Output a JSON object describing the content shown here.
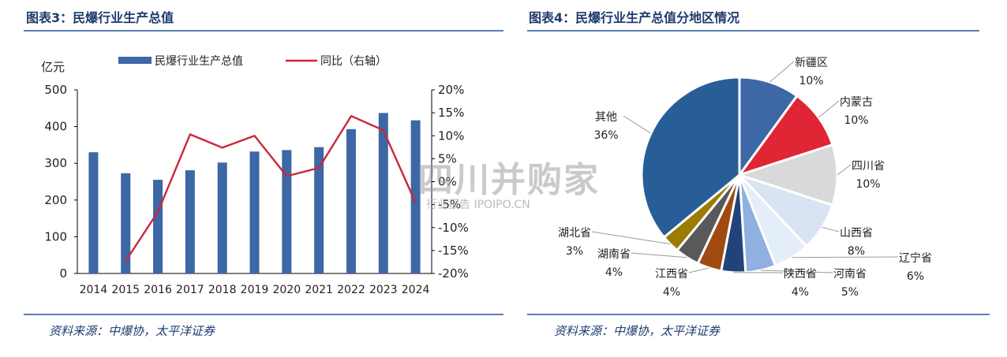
{
  "left_figure": {
    "title": "图表3：民爆行业生产总值",
    "source": "资料来源：中爆协，太平洋证券"
  },
  "right_figure": {
    "title": "图表4：民爆行业生产总值分地区情况",
    "source": "资料来源：中爆协，太平洋证券"
  },
  "watermark": {
    "main": "四川并购家",
    "sub": "行业报告 IPOIPO.CN"
  },
  "chart_data": [
    {
      "type": "bar",
      "categories": [
        "2014",
        "2015",
        "2016",
        "2017",
        "2018",
        "2019",
        "2020",
        "2021",
        "2022",
        "2023",
        "2024"
      ],
      "series": [
        {
          "name": "民爆行业生产总值",
          "type": "bar",
          "axis": "left",
          "color": "#3d67a5",
          "values": [
            330,
            273,
            255,
            281,
            302,
            332,
            336,
            344,
            393,
            437,
            417
          ]
        },
        {
          "name": "同比（右轴）",
          "type": "line",
          "axis": "right",
          "color": "#c8293a",
          "values": [
            null,
            -17.3,
            -6.6,
            10.3,
            7.4,
            10.0,
            1.2,
            3.0,
            14.3,
            11.2,
            -4.6
          ]
        }
      ],
      "ylabel": "亿元",
      "ylim": [
        0,
        500
      ],
      "yticks": [
        "0",
        "100",
        "200",
        "300",
        "400",
        "500"
      ],
      "y2lim": [
        -20,
        20
      ],
      "y2ticks": [
        "-20%",
        "-15%",
        "-10%",
        "-5%",
        "0%",
        "5%",
        "10%",
        "15%",
        "20%"
      ],
      "legend": "top",
      "grid": false
    },
    {
      "type": "pie",
      "labels": [
        "新疆区",
        "内蒙古",
        "四川省",
        "山西省",
        "辽宁省",
        "河南省",
        "陕西省",
        "江西省",
        "湖南省",
        "湖北省",
        "其他"
      ],
      "values": [
        10,
        10,
        10,
        8,
        6,
        5,
        4,
        4,
        4,
        3,
        36
      ],
      "value_labels": [
        "10%",
        "10%",
        "10%",
        "8%",
        "6%",
        "5%",
        "4%",
        "4%",
        "4%",
        "3%",
        "36%"
      ],
      "colors": [
        "#3d67a5",
        "#e02535",
        "#d9d9d9",
        "#d8e3f3",
        "#e3eef8",
        "#8fb0e0",
        "#22427a",
        "#a04a10",
        "#595959",
        "#9a7c00",
        "#275e98"
      ],
      "legend": "none"
    }
  ]
}
